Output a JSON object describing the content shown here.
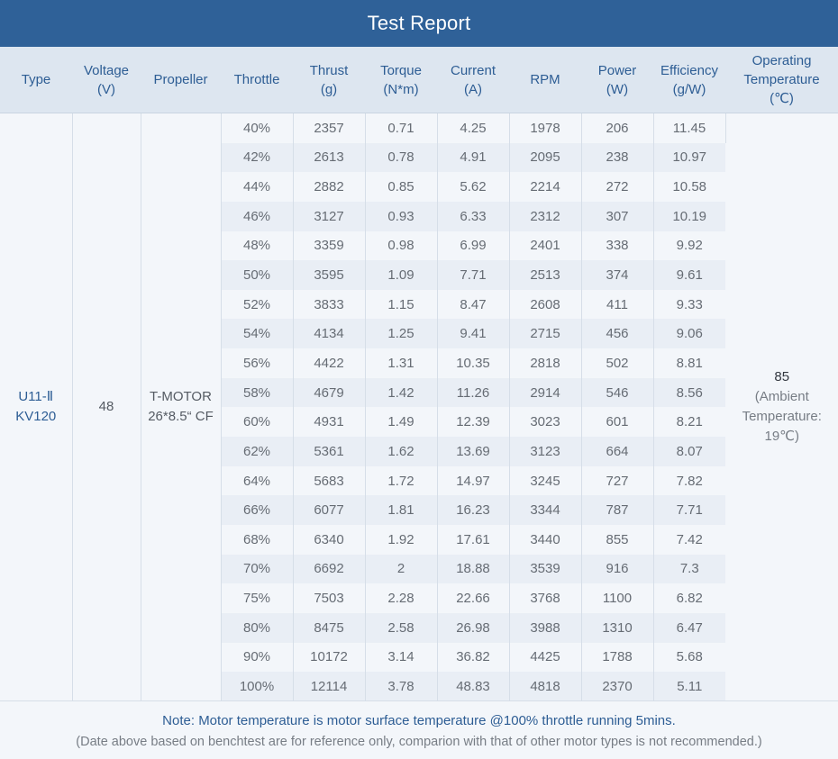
{
  "title": "Test Report",
  "headers": {
    "type": "Type",
    "voltage": [
      "Voltage",
      "(V)"
    ],
    "propeller": "Propeller",
    "throttle": "Throttle",
    "thrust": [
      "Thrust",
      "(g)"
    ],
    "torque": [
      "Torque",
      "(N*m)"
    ],
    "current": [
      "Current",
      "(A)"
    ],
    "rpm": "RPM",
    "power": [
      "Power",
      "(W)"
    ],
    "efficiency": [
      "Efficiency",
      "(g/W)"
    ],
    "operating_temperature": [
      "Operating",
      "Temperature",
      "(℃)"
    ]
  },
  "motor": {
    "type": [
      "U11-Ⅱ",
      "KV120"
    ],
    "voltage": "48",
    "propeller": [
      "T-MOTOR",
      "26*8.5“ CF"
    ],
    "operating_temperature": [
      "85",
      "(Ambient",
      "Temperature:",
      "19℃)"
    ]
  },
  "rows": [
    [
      "40%",
      "2357",
      "0.71",
      "4.25",
      "1978",
      "206",
      "11.45"
    ],
    [
      "42%",
      "2613",
      "0.78",
      "4.91",
      "2095",
      "238",
      "10.97"
    ],
    [
      "44%",
      "2882",
      "0.85",
      "5.62",
      "2214",
      "272",
      "10.58"
    ],
    [
      "46%",
      "3127",
      "0.93",
      "6.33",
      "2312",
      "307",
      "10.19"
    ],
    [
      "48%",
      "3359",
      "0.98",
      "6.99",
      "2401",
      "338",
      "9.92"
    ],
    [
      "50%",
      "3595",
      "1.09",
      "7.71",
      "2513",
      "374",
      "9.61"
    ],
    [
      "52%",
      "3833",
      "1.15",
      "8.47",
      "2608",
      "411",
      "9.33"
    ],
    [
      "54%",
      "4134",
      "1.25",
      "9.41",
      "2715",
      "456",
      "9.06"
    ],
    [
      "56%",
      "4422",
      "1.31",
      "10.35",
      "2818",
      "502",
      "8.81"
    ],
    [
      "58%",
      "4679",
      "1.42",
      "11.26",
      "2914",
      "546",
      "8.56"
    ],
    [
      "60%",
      "4931",
      "1.49",
      "12.39",
      "3023",
      "601",
      "8.21"
    ],
    [
      "62%",
      "5361",
      "1.62",
      "13.69",
      "3123",
      "664",
      "8.07"
    ],
    [
      "64%",
      "5683",
      "1.72",
      "14.97",
      "3245",
      "727",
      "7.82"
    ],
    [
      "66%",
      "6077",
      "1.81",
      "16.23",
      "3344",
      "787",
      "7.71"
    ],
    [
      "68%",
      "6340",
      "1.92",
      "17.61",
      "3440",
      "855",
      "7.42"
    ],
    [
      "70%",
      "6692",
      "2",
      "18.88",
      "3539",
      "916",
      "7.3"
    ],
    [
      "75%",
      "7503",
      "2.28",
      "22.66",
      "3768",
      "1100",
      "6.82"
    ],
    [
      "80%",
      "8475",
      "2.58",
      "26.98",
      "3988",
      "1310",
      "6.47"
    ],
    [
      "90%",
      "10172",
      "3.14",
      "36.82",
      "4425",
      "1788",
      "5.68"
    ],
    [
      "100%",
      "12114",
      "3.78",
      "48.83",
      "4818",
      "2370",
      "5.11"
    ]
  ],
  "footer": {
    "note": "Note: Motor temperature is motor surface temperature @100% throttle running 5mins.",
    "disclaimer": "(Date above based on benchtest are for reference only, comparion with that of other motor types is not recommended.)"
  },
  "colors": {
    "title_bar": "#2f6198",
    "header_bg": "#dde6f0",
    "header_text": "#2d5d94",
    "row_alt": "#e9eef5",
    "row_plain": "#f3f6fa"
  }
}
